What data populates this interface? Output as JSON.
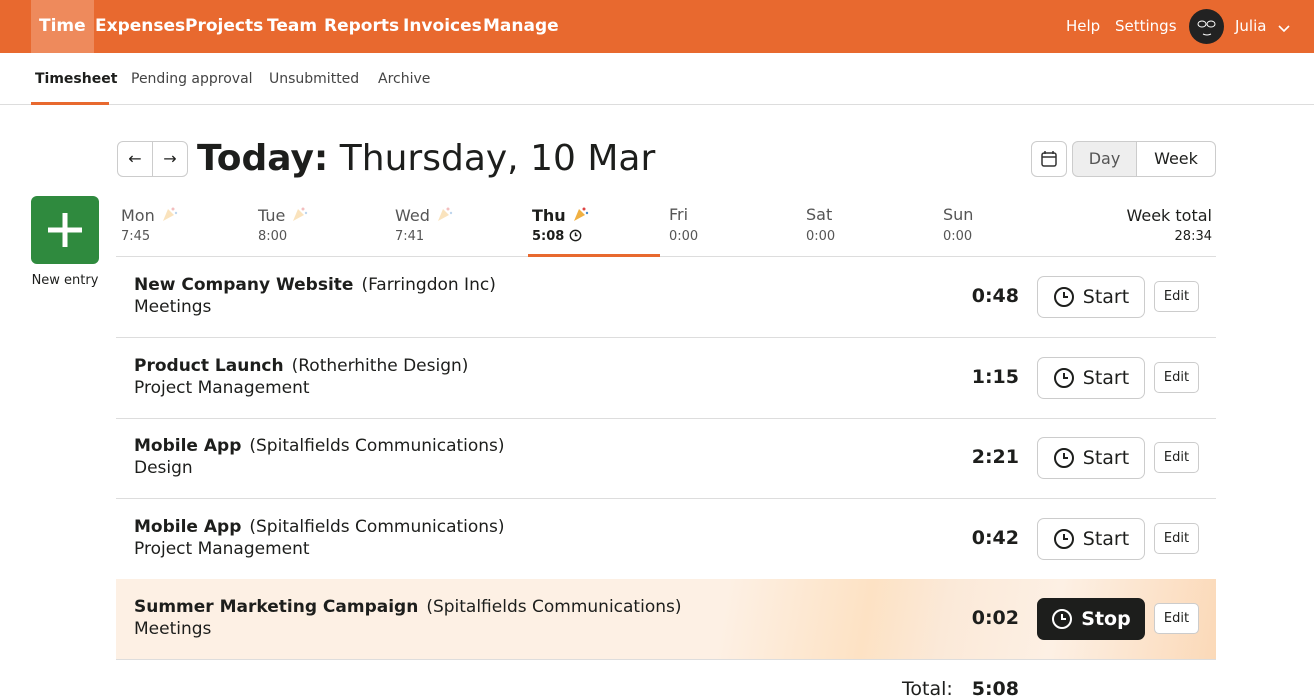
{
  "nav": {
    "items": [
      "Time",
      "Expenses",
      "Projects",
      "Team",
      "Reports",
      "Invoices",
      "Manage"
    ],
    "right": [
      "Help",
      "Settings"
    ],
    "user": "Julia"
  },
  "tabs": [
    "Timesheet",
    "Pending approval",
    "Unsubmitted",
    "Archive"
  ],
  "header": {
    "title_prefix": "Today:",
    "title": "Thursday, 10 Mar",
    "view_buttons": [
      "Day",
      "Week"
    ]
  },
  "new_entry": "New entry",
  "days": [
    {
      "name": "Mon",
      "total": "7:45"
    },
    {
      "name": "Tue",
      "total": "8:00"
    },
    {
      "name": "Wed",
      "total": "7:41"
    },
    {
      "name": "Thu",
      "total": "5:08"
    },
    {
      "name": "Fri",
      "total": "0:00"
    },
    {
      "name": "Sat",
      "total": "0:00"
    },
    {
      "name": "Sun",
      "total": "0:00"
    }
  ],
  "week_total": {
    "label": "Week total",
    "value": "28:34"
  },
  "entries": [
    {
      "project": "New Company Website",
      "client": "(Farringdon Inc)",
      "task": "Meetings",
      "time": "0:48",
      "button": "Start",
      "edit": "Edit"
    },
    {
      "project": "Product Launch",
      "client": "(Rotherhithe Design)",
      "task": "Project Management",
      "time": "1:15",
      "button": "Start",
      "edit": "Edit"
    },
    {
      "project": "Mobile App",
      "client": "(Spitalfields Communications)",
      "task": "Design",
      "time": "2:21",
      "button": "Start",
      "edit": "Edit"
    },
    {
      "project": "Mobile App",
      "client": "(Spitalfields Communications)",
      "task": "Project Management",
      "time": "0:42",
      "button": "Start",
      "edit": "Edit"
    },
    {
      "project": "Summer Marketing Campaign",
      "client": "(Spitalfields Communications)",
      "task": "Meetings",
      "time": "0:02",
      "button": "Stop",
      "edit": "Edit"
    }
  ],
  "total": {
    "label": "Total:",
    "value": "5:08"
  }
}
